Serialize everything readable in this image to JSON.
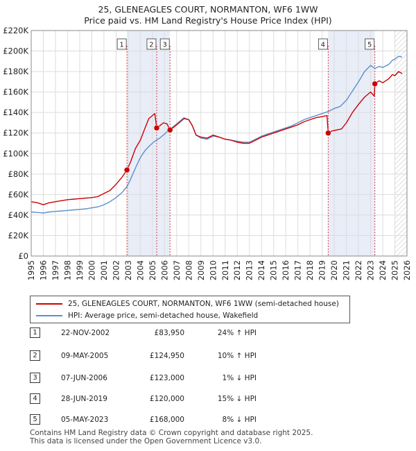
{
  "title_line1": "25, GLENEAGLES COURT, NORMANTON, WF6 1WW",
  "title_line2": "Price paid vs. HM Land Registry's House Price Index (HPI)",
  "legend": {
    "property": "25, GLENEAGLES COURT, NORMANTON, WF6 1WW (semi-detached house)",
    "hpi": "HPI: Average price, semi-detached house, Wakefield"
  },
  "colors": {
    "property": "#cc0000",
    "hpi": "#5b8fc9",
    "shade": "#e8edf8",
    "hatch": "#c8c8c8"
  },
  "sales": [
    {
      "num": "1",
      "date": "22-NOV-2002",
      "price": "£83,950",
      "hpi": "24% ↑ HPI"
    },
    {
      "num": "2",
      "date": "09-MAY-2005",
      "price": "£124,950",
      "hpi": "10% ↑ HPI"
    },
    {
      "num": "3",
      "date": "07-JUN-2006",
      "price": "£123,000",
      "hpi": "1% ↓ HPI"
    },
    {
      "num": "4",
      "date": "28-JUN-2019",
      "price": "£120,000",
      "hpi": "15% ↓ HPI"
    },
    {
      "num": "5",
      "date": "05-MAY-2023",
      "price": "£168,000",
      "hpi": "8% ↓ HPI"
    }
  ],
  "footer": {
    "line1": "Contains HM Land Registry data © Crown copyright and database right 2025.",
    "line2": "This data is licensed under the Open Government Licence v3.0."
  },
  "chart_data": {
    "type": "line",
    "title": "25, GLENEAGLES COURT, NORMANTON, WF6 1WW",
    "subtitle": "Price paid vs. HM Land Registry's House Price Index (HPI)",
    "xlabel": "",
    "ylabel": "",
    "xlim": [
      1995,
      2026
    ],
    "ylim": [
      0,
      220000
    ],
    "yticks": [
      0,
      20000,
      40000,
      60000,
      80000,
      100000,
      120000,
      140000,
      160000,
      180000,
      200000,
      220000
    ],
    "ytick_labels": [
      "£0",
      "£20K",
      "£40K",
      "£60K",
      "£80K",
      "£100K",
      "£120K",
      "£140K",
      "£160K",
      "£180K",
      "£200K",
      "£220K"
    ],
    "xticks": [
      1995,
      1996,
      1997,
      1998,
      1999,
      2000,
      2001,
      2002,
      2003,
      2004,
      2005,
      2006,
      2007,
      2008,
      2009,
      2010,
      2011,
      2012,
      2013,
      2014,
      2015,
      2016,
      2017,
      2018,
      2019,
      2020,
      2021,
      2022,
      2023,
      2024,
      2025,
      2026
    ],
    "grid": true,
    "shaded_ranges": [
      [
        2002.9,
        2006.45
      ],
      [
        2019.5,
        2023.35
      ]
    ],
    "forecast_from": 2025.0,
    "sale_points": [
      {
        "label": "1",
        "x": 2002.9,
        "y": 83950
      },
      {
        "label": "2",
        "x": 2005.35,
        "y": 124950
      },
      {
        "label": "3",
        "x": 2006.45,
        "y": 123000
      },
      {
        "label": "4",
        "x": 2019.5,
        "y": 120000
      },
      {
        "label": "5",
        "x": 2023.35,
        "y": 168000
      }
    ],
    "series": [
      {
        "name": "25, GLENEAGLES COURT, NORMANTON, WF6 1WW (semi-detached house)",
        "color": "#cc0000",
        "points": [
          [
            1995.0,
            53000
          ],
          [
            1995.5,
            52000
          ],
          [
            1996.0,
            50000
          ],
          [
            1996.5,
            52000
          ],
          [
            1997.0,
            53000
          ],
          [
            1997.5,
            54000
          ],
          [
            1998.0,
            55000
          ],
          [
            1998.5,
            55500
          ],
          [
            1999.0,
            56000
          ],
          [
            1999.5,
            56500
          ],
          [
            2000.0,
            57000
          ],
          [
            2000.5,
            58000
          ],
          [
            2001.0,
            61000
          ],
          [
            2001.5,
            64000
          ],
          [
            2002.0,
            70000
          ],
          [
            2002.5,
            77000
          ],
          [
            2002.9,
            83950
          ],
          [
            2003.2,
            92000
          ],
          [
            2003.6,
            105000
          ],
          [
            2004.0,
            113000
          ],
          [
            2004.4,
            125000
          ],
          [
            2004.7,
            134000
          ],
          [
            2005.0,
            137000
          ],
          [
            2005.2,
            139000
          ],
          [
            2005.35,
            124950
          ],
          [
            2005.6,
            127000
          ],
          [
            2005.9,
            130000
          ],
          [
            2006.2,
            129000
          ],
          [
            2006.45,
            123000
          ],
          [
            2006.8,
            126000
          ],
          [
            2007.2,
            130000
          ],
          [
            2007.6,
            134000
          ],
          [
            2008.0,
            133000
          ],
          [
            2008.3,
            127000
          ],
          [
            2008.6,
            118000
          ],
          [
            2009.0,
            116000
          ],
          [
            2009.5,
            115000
          ],
          [
            2010.0,
            118000
          ],
          [
            2010.5,
            116000
          ],
          [
            2011.0,
            114000
          ],
          [
            2011.5,
            113000
          ],
          [
            2012.0,
            111000
          ],
          [
            2012.5,
            110000
          ],
          [
            2013.0,
            110000
          ],
          [
            2013.5,
            113000
          ],
          [
            2014.0,
            116000
          ],
          [
            2014.5,
            118000
          ],
          [
            2015.0,
            120000
          ],
          [
            2015.5,
            122000
          ],
          [
            2016.0,
            124000
          ],
          [
            2016.5,
            126000
          ],
          [
            2017.0,
            128000
          ],
          [
            2017.5,
            131000
          ],
          [
            2018.0,
            133000
          ],
          [
            2018.5,
            135000
          ],
          [
            2019.0,
            136000
          ],
          [
            2019.4,
            137000
          ],
          [
            2019.5,
            120000
          ],
          [
            2019.8,
            122000
          ],
          [
            2020.2,
            123000
          ],
          [
            2020.6,
            124000
          ],
          [
            2021.0,
            130000
          ],
          [
            2021.5,
            140000
          ],
          [
            2022.0,
            148000
          ],
          [
            2022.5,
            155000
          ],
          [
            2023.0,
            160000
          ],
          [
            2023.3,
            156000
          ],
          [
            2023.35,
            168000
          ],
          [
            2023.7,
            171000
          ],
          [
            2024.0,
            169000
          ],
          [
            2024.5,
            173000
          ],
          [
            2024.8,
            177000
          ],
          [
            2025.0,
            176000
          ],
          [
            2025.3,
            180000
          ],
          [
            2025.6,
            178000
          ]
        ]
      },
      {
        "name": "HPI: Average price, semi-detached house, Wakefield",
        "color": "#5b8fc9",
        "points": [
          [
            1995.0,
            43000
          ],
          [
            1995.5,
            42500
          ],
          [
            1996.0,
            42000
          ],
          [
            1996.5,
            43000
          ],
          [
            1997.0,
            43500
          ],
          [
            1997.5,
            44000
          ],
          [
            1998.0,
            44500
          ],
          [
            1998.5,
            45000
          ],
          [
            1999.0,
            45500
          ],
          [
            1999.5,
            46000
          ],
          [
            2000.0,
            47000
          ],
          [
            2000.5,
            48000
          ],
          [
            2001.0,
            50000
          ],
          [
            2001.5,
            53000
          ],
          [
            2002.0,
            57000
          ],
          [
            2002.5,
            62000
          ],
          [
            2002.9,
            67700
          ],
          [
            2003.2,
            75000
          ],
          [
            2003.6,
            86000
          ],
          [
            2004.0,
            96000
          ],
          [
            2004.4,
            103000
          ],
          [
            2004.8,
            108000
          ],
          [
            2005.2,
            112000
          ],
          [
            2005.6,
            115000
          ],
          [
            2006.0,
            119000
          ],
          [
            2006.45,
            124000
          ],
          [
            2006.8,
            127000
          ],
          [
            2007.2,
            131000
          ],
          [
            2007.6,
            135000
          ],
          [
            2008.0,
            133000
          ],
          [
            2008.3,
            127000
          ],
          [
            2008.6,
            118000
          ],
          [
            2009.0,
            115000
          ],
          [
            2009.5,
            114000
          ],
          [
            2010.0,
            117000
          ],
          [
            2010.5,
            116000
          ],
          [
            2011.0,
            114000
          ],
          [
            2011.5,
            113000
          ],
          [
            2012.0,
            112000
          ],
          [
            2012.5,
            111000
          ],
          [
            2013.0,
            111000
          ],
          [
            2013.5,
            114000
          ],
          [
            2014.0,
            117000
          ],
          [
            2014.5,
            119000
          ],
          [
            2015.0,
            121000
          ],
          [
            2015.5,
            123000
          ],
          [
            2016.0,
            125000
          ],
          [
            2016.5,
            127000
          ],
          [
            2017.0,
            130000
          ],
          [
            2017.5,
            133000
          ],
          [
            2018.0,
            135000
          ],
          [
            2018.5,
            137000
          ],
          [
            2019.0,
            139000
          ],
          [
            2019.5,
            141000
          ],
          [
            2020.0,
            144000
          ],
          [
            2020.5,
            146000
          ],
          [
            2021.0,
            152000
          ],
          [
            2021.5,
            161000
          ],
          [
            2022.0,
            170000
          ],
          [
            2022.5,
            180000
          ],
          [
            2023.0,
            186000
          ],
          [
            2023.35,
            183000
          ],
          [
            2023.7,
            185000
          ],
          [
            2024.0,
            184000
          ],
          [
            2024.5,
            187000
          ],
          [
            2024.8,
            191000
          ],
          [
            2025.0,
            192000
          ],
          [
            2025.3,
            195000
          ],
          [
            2025.6,
            194000
          ]
        ]
      }
    ]
  }
}
